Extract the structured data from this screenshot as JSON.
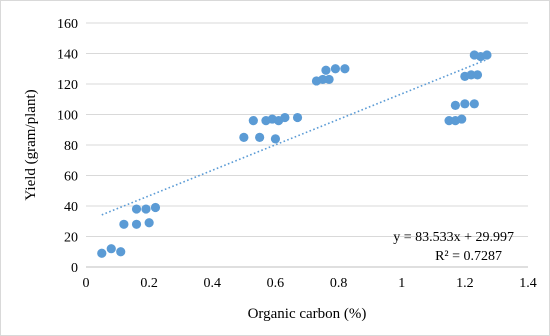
{
  "chart_data": {
    "type": "scatter",
    "title": "",
    "xlabel": "Organic carbon (%)",
    "ylabel": "Yield (gram/plant)",
    "xlim": [
      0,
      1.4
    ],
    "ylim": [
      0,
      160
    ],
    "x_ticks": [
      0,
      0.2,
      0.4,
      0.6,
      0.8,
      1,
      1.2,
      1.4
    ],
    "y_ticks": [
      0,
      20,
      40,
      60,
      80,
      100,
      120,
      140,
      160
    ],
    "x_tick_labels": [
      "0",
      "0.2",
      "0.4",
      "0.6",
      "0.8",
      "1",
      "1.2",
      "1.4"
    ],
    "y_tick_labels": [
      "0",
      "20",
      "40",
      "60",
      "80",
      "100",
      "120",
      "140",
      "160"
    ],
    "grid": "horizontal",
    "legend": "none",
    "point_color": "#5b9bd5",
    "trendline_color": "#5b9bd5",
    "points": [
      {
        "x": 0.05,
        "y": 9
      },
      {
        "x": 0.08,
        "y": 12
      },
      {
        "x": 0.11,
        "y": 10
      },
      {
        "x": 0.12,
        "y": 28
      },
      {
        "x": 0.16,
        "y": 28
      },
      {
        "x": 0.2,
        "y": 29
      },
      {
        "x": 0.16,
        "y": 38
      },
      {
        "x": 0.19,
        "y": 38
      },
      {
        "x": 0.22,
        "y": 39
      },
      {
        "x": 0.5,
        "y": 85
      },
      {
        "x": 0.55,
        "y": 85
      },
      {
        "x": 0.6,
        "y": 84
      },
      {
        "x": 0.53,
        "y": 96
      },
      {
        "x": 0.57,
        "y": 96
      },
      {
        "x": 0.59,
        "y": 97
      },
      {
        "x": 0.61,
        "y": 96
      },
      {
        "x": 0.63,
        "y": 98
      },
      {
        "x": 0.67,
        "y": 98
      },
      {
        "x": 0.73,
        "y": 122
      },
      {
        "x": 0.75,
        "y": 123
      },
      {
        "x": 0.77,
        "y": 123
      },
      {
        "x": 0.76,
        "y": 129
      },
      {
        "x": 0.79,
        "y": 130
      },
      {
        "x": 0.82,
        "y": 130
      },
      {
        "x": 1.15,
        "y": 96
      },
      {
        "x": 1.17,
        "y": 96
      },
      {
        "x": 1.19,
        "y": 97
      },
      {
        "x": 1.17,
        "y": 106
      },
      {
        "x": 1.2,
        "y": 107
      },
      {
        "x": 1.23,
        "y": 107
      },
      {
        "x": 1.2,
        "y": 125
      },
      {
        "x": 1.22,
        "y": 126
      },
      {
        "x": 1.24,
        "y": 126
      },
      {
        "x": 1.23,
        "y": 139
      },
      {
        "x": 1.25,
        "y": 138
      },
      {
        "x": 1.27,
        "y": 139
      }
    ],
    "trendline": {
      "type": "linear",
      "slope": 83.533,
      "intercept": 29.997,
      "x_range": [
        0.05,
        1.27
      ],
      "equation_label": "y = 83.533x + 29.997",
      "r2_label": "R² = 0.7287"
    }
  }
}
